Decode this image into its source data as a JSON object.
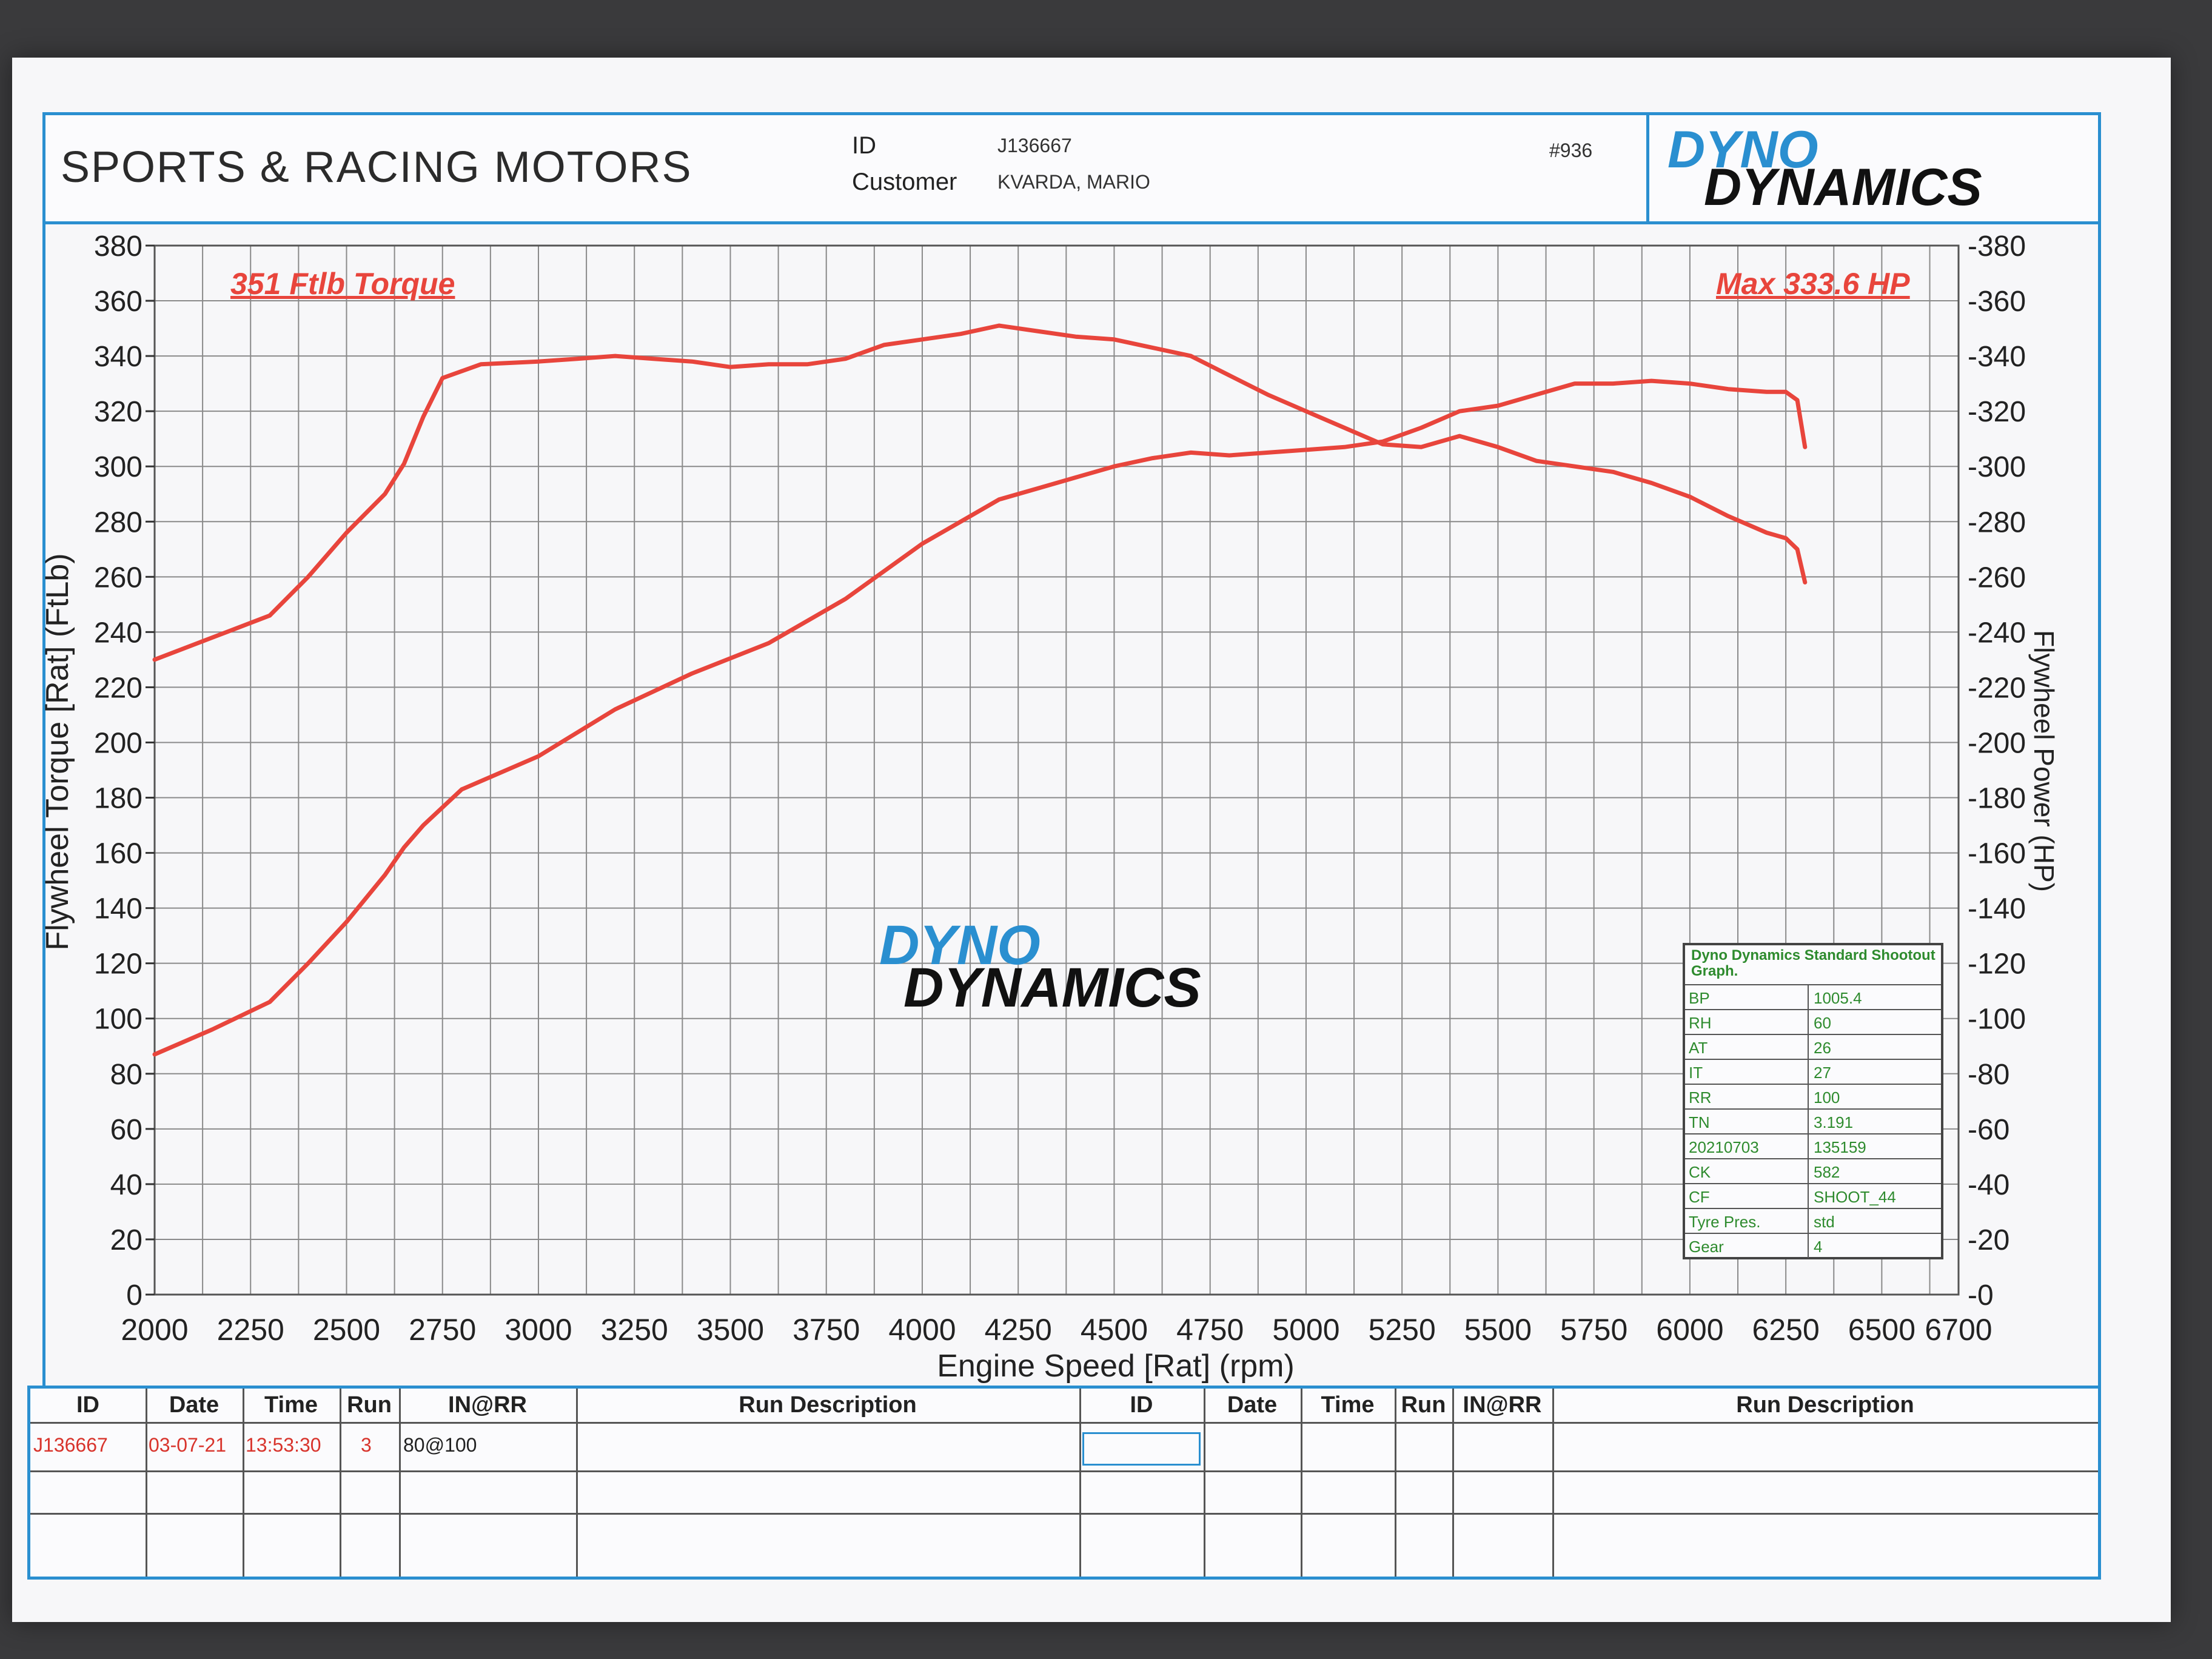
{
  "header": {
    "shop_name": "SPORTS & RACING MOTORS",
    "id_label": "ID",
    "id_value": "J136667",
    "customer_label": "Customer",
    "customer_value": "KVARDA, MARIO",
    "sheet_number": "#936",
    "logo_top": "DYNO",
    "logo_bottom": "DYNAMICS"
  },
  "colors": {
    "frame": "#2a8fd0",
    "curve": "#e8453c",
    "logo_blue": "#2a8fd0",
    "logo_red": "#d8342c",
    "cond_text": "#2e8b2e"
  },
  "annotations": {
    "torque_peak": "351 Ftlb Torque",
    "power_peak": "Max 333.6 HP"
  },
  "conditions": {
    "title": "Dyno Dynamics Standard Shootout Graph.",
    "rows": [
      {
        "k": "BP",
        "v": "1005.4"
      },
      {
        "k": "RH",
        "v": "60"
      },
      {
        "k": "AT",
        "v": "26"
      },
      {
        "k": "IT",
        "v": "27"
      },
      {
        "k": "RR",
        "v": "100"
      },
      {
        "k": "TN",
        "v": "3.191"
      },
      {
        "k": "20210703",
        "v": "135159"
      },
      {
        "k": "CK",
        "v": "582"
      },
      {
        "k": "CF",
        "v": "SHOOT_44"
      },
      {
        "k": "Tyre Pres.",
        "v": "std"
      },
      {
        "k": "Gear",
        "v": "4"
      }
    ]
  },
  "run_table": {
    "headers": [
      "ID",
      "Date",
      "Time",
      "Run",
      "IN@RR",
      "Run Description"
    ],
    "rows": [
      {
        "id": "J136667",
        "date": "03-07-21",
        "time": "13:53:30",
        "run": "3",
        "inrr": "80@100",
        "desc": ""
      }
    ]
  },
  "chart_data": {
    "type": "line",
    "xlabel": "Engine Speed [Rat] (rpm)",
    "ylabel": "Flywheel Torque [Rat] (FtLb)",
    "y2label": "Flywheel Power (HP)",
    "xlim": [
      2000,
      6700
    ],
    "ylim": [
      0,
      380
    ],
    "x_ticks": [
      2000,
      2250,
      2500,
      2750,
      3000,
      3250,
      3500,
      3750,
      4000,
      4250,
      4500,
      4750,
      5000,
      5250,
      5500,
      5750,
      6000,
      6250,
      6500,
      6700
    ],
    "y_ticks": [
      0,
      20,
      40,
      60,
      80,
      100,
      120,
      140,
      160,
      180,
      200,
      220,
      240,
      260,
      280,
      300,
      320,
      340,
      360,
      380
    ],
    "grid": true,
    "series": [
      {
        "name": "Torque",
        "axis": "left",
        "x": [
          2000,
          2150,
          2300,
          2400,
          2500,
          2600,
          2650,
          2700,
          2750,
          2850,
          3000,
          3100,
          3200,
          3300,
          3400,
          3500,
          3600,
          3700,
          3800,
          3900,
          4000,
          4100,
          4200,
          4300,
          4400,
          4500,
          4600,
          4700,
          4800,
          4900,
          5000,
          5100,
          5200,
          5300,
          5400,
          5500,
          5600,
          5700,
          5800,
          5900,
          6000,
          6100,
          6200,
          6250,
          6280,
          6300
        ],
        "values": [
          230,
          238,
          246,
          260,
          276,
          290,
          301,
          318,
          332,
          337,
          338,
          339,
          340,
          339,
          338,
          336,
          337,
          337,
          339,
          344,
          346,
          348,
          351,
          349,
          347,
          346,
          343,
          340,
          333,
          326,
          320,
          314,
          308,
          307,
          311,
          307,
          302,
          300,
          298,
          294,
          289,
          282,
          276,
          274,
          270,
          258
        ]
      },
      {
        "name": "Power",
        "axis": "right",
        "x": [
          2000,
          2150,
          2300,
          2400,
          2500,
          2600,
          2650,
          2700,
          2800,
          3000,
          3200,
          3400,
          3600,
          3800,
          4000,
          4100,
          4200,
          4300,
          4400,
          4500,
          4600,
          4700,
          4800,
          4900,
          5000,
          5100,
          5200,
          5300,
          5400,
          5500,
          5600,
          5700,
          5800,
          5900,
          6000,
          6100,
          6200,
          6250,
          6280,
          6300
        ],
        "values": [
          87,
          96,
          106,
          120,
          135,
          152,
          162,
          170,
          183,
          195,
          212,
          225,
          236,
          252,
          272,
          280,
          288,
          292,
          296,
          300,
          303,
          305,
          304,
          305,
          306,
          307,
          309,
          314,
          320,
          322,
          326,
          330,
          330,
          331,
          330,
          328,
          327,
          327,
          324,
          307
        ]
      }
    ]
  }
}
